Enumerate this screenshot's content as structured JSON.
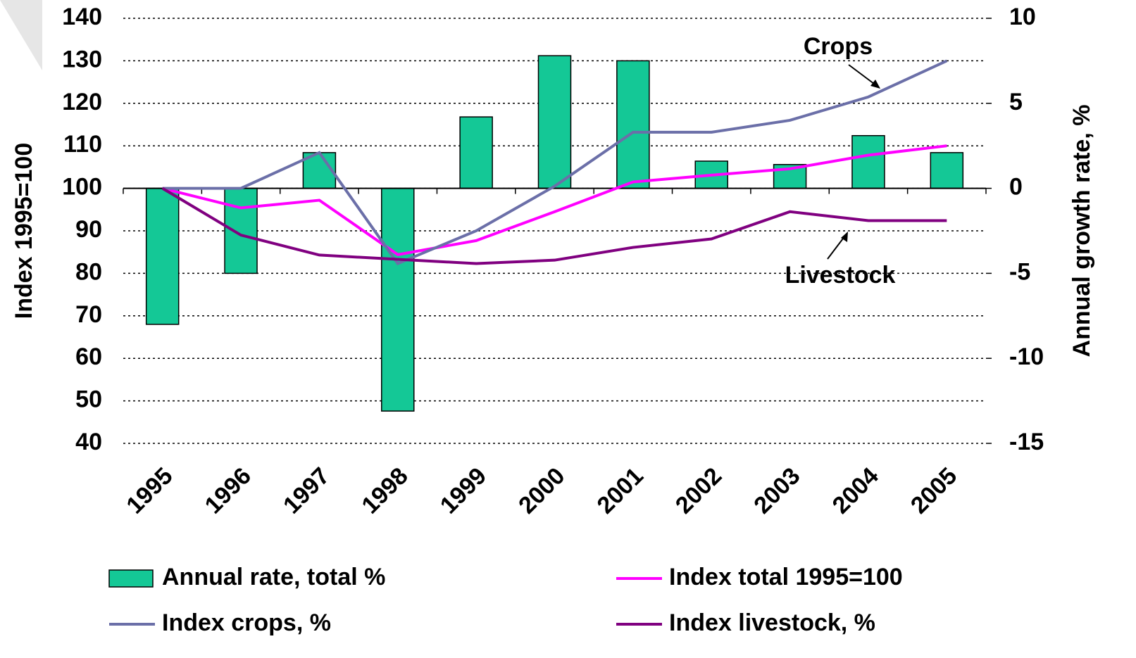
{
  "chart_data": {
    "type": "bar_line",
    "categories": [
      "1995",
      "1996",
      "1997",
      "1998",
      "1999",
      "2000",
      "2001",
      "2002",
      "2003",
      "2004",
      "2005"
    ],
    "series": [
      {
        "name": "Annual rate, total %",
        "type": "bar",
        "axis": "y2",
        "color": "#14c896",
        "values": [
          -8,
          -5,
          2.1,
          -13.1,
          4.2,
          7.8,
          7.5,
          1.6,
          1.4,
          3.1,
          2.1
        ]
      },
      {
        "name": "Index total 1995=100",
        "type": "line",
        "color": "#ff00ff",
        "values": [
          100,
          95.4,
          97.2,
          84.4,
          87.7,
          94.5,
          101.5,
          103.1,
          104.6,
          107.8,
          110
        ]
      },
      {
        "name": "Index crops, %",
        "type": "line",
        "color": "#6b6fa8",
        "values": [
          100,
          100,
          108.4,
          82.3,
          90,
          100.5,
          113.2,
          113.2,
          116,
          121.5,
          130
        ]
      },
      {
        "name": "Index livestock, %",
        "type": "line",
        "color": "#800080",
        "values": [
          100,
          89,
          84.3,
          83.3,
          82.3,
          83.1,
          86.1,
          88.1,
          94.5,
          92.4,
          92.4
        ]
      }
    ],
    "ylabel": "Index 1995=100",
    "y2label": "Annual growth rate, %",
    "ylim": [
      40,
      140
    ],
    "yticks": [
      40,
      50,
      60,
      70,
      80,
      90,
      100,
      110,
      120,
      130,
      140
    ],
    "y2lim": [
      -15,
      10
    ],
    "y2ticks": [
      -15,
      -10,
      -5,
      0,
      5,
      10
    ],
    "grid": true,
    "annotations": [
      "Crops",
      "Livestock"
    ]
  }
}
